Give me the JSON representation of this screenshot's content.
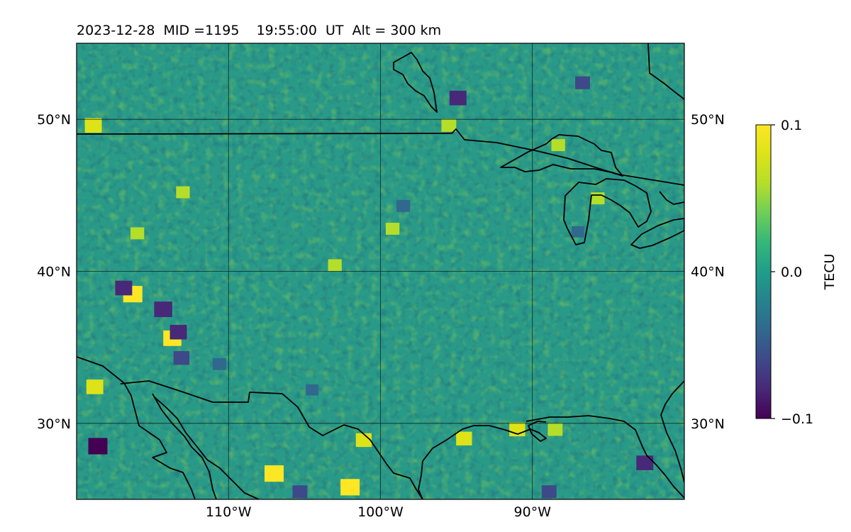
{
  "chart_data": {
    "type": "heatmap",
    "title": "2023-12-28  MID =1195    19:55:00  UT  Alt = 300 km",
    "subtitle": "",
    "colorbar": {
      "label": "TECU",
      "colormap": "viridis",
      "vmin": -0.1,
      "vmax": 0.1,
      "ticks": [
        {
          "value": 0.1,
          "label": "0.1"
        },
        {
          "value": 0.0,
          "label": "0.0"
        },
        {
          "value": -0.1,
          "label": "−0.1"
        }
      ]
    },
    "lon_range": [
      -120,
      -80
    ],
    "lat_range": [
      25,
      55
    ],
    "lon_ticks": [
      {
        "value": -110,
        "label": "110°W"
      },
      {
        "value": -100,
        "label": "100°W"
      },
      {
        "value": -90,
        "label": "90°W"
      }
    ],
    "lat_ticks": [
      {
        "value": 50,
        "label": "50°N"
      },
      {
        "value": 40,
        "label": "40°N"
      },
      {
        "value": 30,
        "label": "30°N"
      }
    ],
    "grid": true,
    "field_description": "Mostly near-zero TEC perturbation with slightly positive values (teal-green), scattered positive patches up to +0.1 and negative patches down to -0.1",
    "highlights": [
      {
        "lon": -107,
        "lat": 26.7,
        "value": 0.1
      },
      {
        "lon": -102,
        "lat": 25.8,
        "value": 0.1
      },
      {
        "lon": -116.3,
        "lat": 38.5,
        "value": 0.1
      },
      {
        "lon": -113.7,
        "lat": 35.6,
        "value": 0.09
      },
      {
        "lon": -118.8,
        "lat": 32.4,
        "value": 0.08
      },
      {
        "lon": -118.9,
        "lat": 49.6,
        "value": 0.08
      },
      {
        "lon": -101.1,
        "lat": 28.9,
        "value": 0.07
      },
      {
        "lon": -94.5,
        "lat": 29.0,
        "value": 0.07
      },
      {
        "lon": -91.0,
        "lat": 29.6,
        "value": 0.07
      },
      {
        "lon": -88.5,
        "lat": 29.6,
        "value": 0.06
      },
      {
        "lon": -95.5,
        "lat": 49.6,
        "value": 0.06
      },
      {
        "lon": -88.3,
        "lat": 48.3,
        "value": 0.05
      },
      {
        "lon": -116.0,
        "lat": 42.5,
        "value": 0.05
      },
      {
        "lon": -99.2,
        "lat": 42.8,
        "value": 0.05
      },
      {
        "lon": -103.0,
        "lat": 40.4,
        "value": 0.05
      },
      {
        "lon": -85.7,
        "lat": 44.8,
        "value": 0.05
      },
      {
        "lon": -113.0,
        "lat": 45.2,
        "value": 0.05
      },
      {
        "lon": -118.6,
        "lat": 28.5,
        "value": -0.1
      },
      {
        "lon": -114.3,
        "lat": 37.5,
        "value": -0.09
      },
      {
        "lon": -113.3,
        "lat": 36.0,
        "value": -0.08
      },
      {
        "lon": -116.9,
        "lat": 38.9,
        "value": -0.08
      },
      {
        "lon": -113.1,
        "lat": 34.3,
        "value": -0.07
      },
      {
        "lon": -82.6,
        "lat": 27.4,
        "value": -0.08
      },
      {
        "lon": -94.9,
        "lat": 51.4,
        "value": -0.08
      },
      {
        "lon": -86.7,
        "lat": 52.4,
        "value": -0.06
      },
      {
        "lon": -88.9,
        "lat": 25.5,
        "value": -0.06
      },
      {
        "lon": -105.3,
        "lat": 25.5,
        "value": -0.06
      },
      {
        "lon": -98.5,
        "lat": 44.3,
        "value": -0.05
      },
      {
        "lon": -110.6,
        "lat": 33.9,
        "value": -0.05
      },
      {
        "lon": -104.5,
        "lat": 32.2,
        "value": -0.04
      },
      {
        "lon": -87.0,
        "lat": 42.6,
        "value": -0.04
      }
    ]
  }
}
